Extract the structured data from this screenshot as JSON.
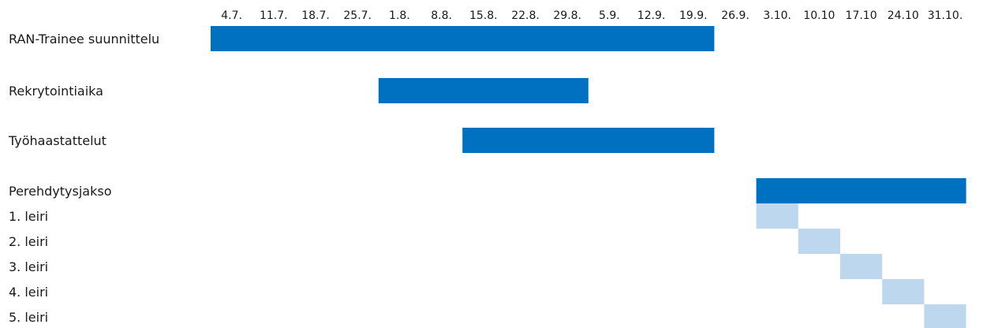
{
  "chart_data": {
    "type": "bar",
    "subtype": "gantt",
    "title": "",
    "xlabel": "",
    "ylabel": "",
    "legend": "none",
    "grid": false,
    "columns": [
      "4.7.",
      "11.7.",
      "18.7.",
      "25.7.",
      "1.8.",
      "8.8.",
      "15.8.",
      "22.8.",
      "29.8.",
      "5.9.",
      "12.9.",
      "19.9.",
      "26.9.",
      "3.10.",
      "10.10",
      "17.10",
      "24.10",
      "31.10."
    ],
    "tasks": [
      {
        "label": "RAN-Trainee suunnittelu",
        "start": "4.7.",
        "end": "19.9.",
        "color": "#0070c0"
      },
      {
        "label": "Rekrytointiaika",
        "start": "1.8.",
        "end": "29.8.",
        "color": "#0070c0"
      },
      {
        "label": "Työhaastattelut",
        "start": "15.8.",
        "end": "19.9.",
        "color": "#0070c0"
      },
      {
        "label": "Perehdytysjakso",
        "start": "3.10.",
        "end": "31.10.",
        "color": "#0070c0"
      },
      {
        "label": "1. leiri",
        "start": "3.10.",
        "end": "3.10.",
        "color": "#bdd7ee"
      },
      {
        "label": "2. leiri",
        "start": "10.10",
        "end": "10.10",
        "color": "#bdd7ee"
      },
      {
        "label": "3. leiri",
        "start": "17.10",
        "end": "17.10",
        "color": "#bdd7ee"
      },
      {
        "label": "4. leiri",
        "start": "24.10",
        "end": "24.10",
        "color": "#bdd7ee"
      },
      {
        "label": "5. leiri",
        "start": "31.10.",
        "end": "31.10.",
        "color": "#bdd7ee"
      }
    ]
  }
}
